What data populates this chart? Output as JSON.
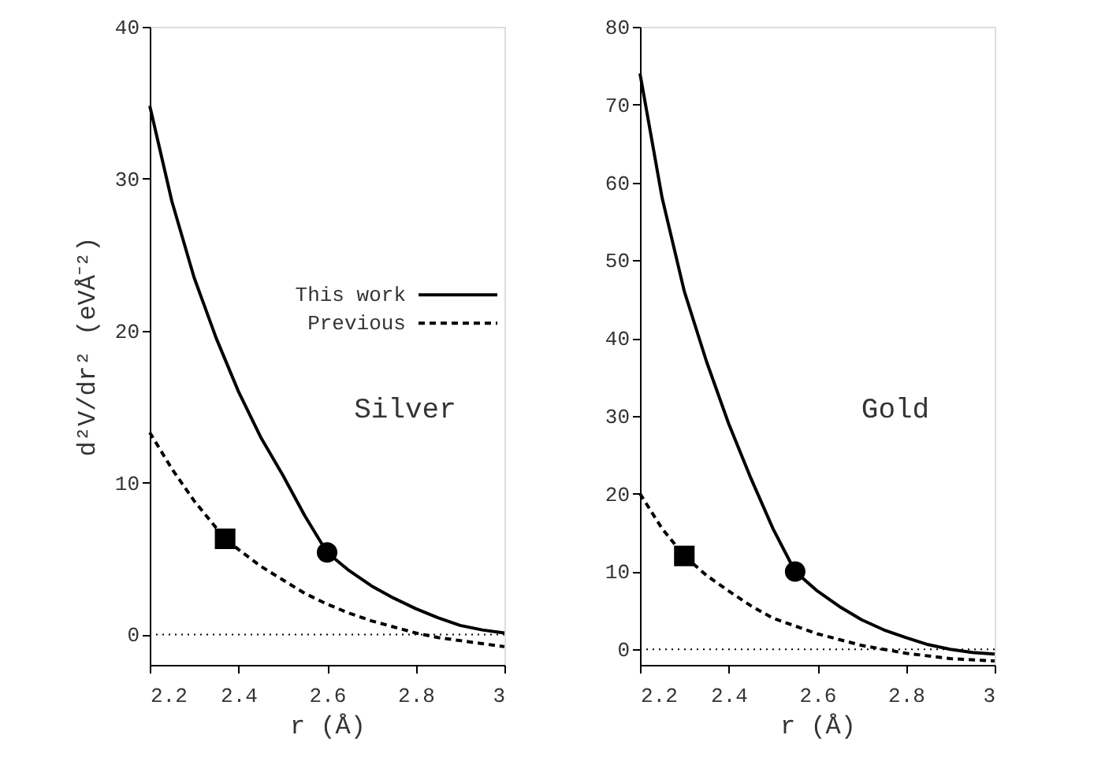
{
  "chart_data": [
    {
      "type": "line",
      "xlabel": "r (Å)",
      "ylabel": "d²V/dr² (eVÅ⁻²)",
      "xlim": [
        2.2,
        3
      ],
      "xticks": [
        2.2,
        2.4,
        2.6,
        2.8,
        3
      ],
      "ylim": [
        -2,
        40
      ],
      "yticks": [
        0,
        10,
        20,
        30,
        40
      ],
      "legend": "right",
      "annotations": [
        "Silver"
      ],
      "series": [
        {
          "name": "This work",
          "color": "#000000",
          "line_style": "solid",
          "x": [
            2.2,
            2.25,
            2.3,
            2.35,
            2.4,
            2.45,
            2.5,
            2.55,
            2.6,
            2.65,
            2.7,
            2.75,
            2.8,
            2.85,
            2.9,
            2.95,
            3.0
          ],
          "values": [
            34.8,
            28.5,
            23.5,
            19.5,
            16,
            13,
            10.5,
            7.8,
            5.4,
            4.2,
            3.2,
            2.4,
            1.7,
            1.1,
            0.6,
            0.3,
            0.1
          ]
        },
        {
          "name": "Previous",
          "color": "#000000",
          "line_style": "dashed",
          "x": [
            2.2,
            2.25,
            2.3,
            2.37,
            2.4,
            2.45,
            2.5,
            2.55,
            2.6,
            2.65,
            2.7,
            2.75,
            2.8,
            2.85,
            2.9,
            2.95,
            3.0
          ],
          "values": [
            13.3,
            10.9,
            8.8,
            6.3,
            5.6,
            4.5,
            3.6,
            2.7,
            2.0,
            1.4,
            0.9,
            0.5,
            0.1,
            -0.2,
            -0.4,
            -0.6,
            -0.8
          ]
        },
        {
          "type": "scatter",
          "marker": "square",
          "color": "#000000",
          "x": [
            2.37
          ],
          "values": [
            6.3
          ]
        },
        {
          "type": "scatter",
          "marker": "circle",
          "color": "#000000",
          "x": [
            2.6
          ],
          "values": [
            5.4
          ]
        }
      ],
      "ref_lines": [
        {
          "axis": "y",
          "value": 0,
          "line_style": "dotted",
          "color": "#000000"
        }
      ]
    },
    {
      "type": "line",
      "xlabel": "r (Å)",
      "xlim": [
        2.2,
        3
      ],
      "xticks": [
        2.2,
        2.4,
        2.6,
        2.8,
        3
      ],
      "ylim": [
        -2,
        80
      ],
      "yticks": [
        0,
        10,
        20,
        30,
        40,
        50,
        60,
        70,
        80
      ],
      "annotations": [
        "Gold"
      ],
      "series": [
        {
          "color": "#000000",
          "line_style": "solid",
          "x": [
            2.2,
            2.25,
            2.3,
            2.35,
            2.4,
            2.45,
            2.5,
            2.55,
            2.6,
            2.65,
            2.7,
            2.75,
            2.8,
            2.85,
            2.9,
            2.95,
            3.0
          ],
          "values": [
            74,
            58,
            46,
            37,
            29,
            22,
            15.5,
            10,
            7.5,
            5.5,
            3.8,
            2.5,
            1.5,
            0.6,
            0,
            -0.4,
            -0.6
          ]
        },
        {
          "color": "#000000",
          "line_style": "dashed",
          "x": [
            2.2,
            2.25,
            2.3,
            2.35,
            2.4,
            2.45,
            2.5,
            2.6,
            2.7,
            2.8,
            2.9,
            3.0
          ],
          "values": [
            20,
            15.5,
            12,
            9.5,
            7.5,
            5.6,
            4,
            2,
            0.5,
            -0.5,
            -1.2,
            -1.5
          ]
        },
        {
          "type": "scatter",
          "marker": "square",
          "color": "#000000",
          "x": [
            2.3
          ],
          "values": [
            12
          ]
        },
        {
          "type": "scatter",
          "marker": "circle",
          "color": "#000000",
          "x": [
            2.55
          ],
          "values": [
            10
          ]
        }
      ],
      "ref_lines": [
        {
          "axis": "y",
          "value": 0,
          "line_style": "dotted",
          "color": "#000000"
        }
      ]
    }
  ]
}
